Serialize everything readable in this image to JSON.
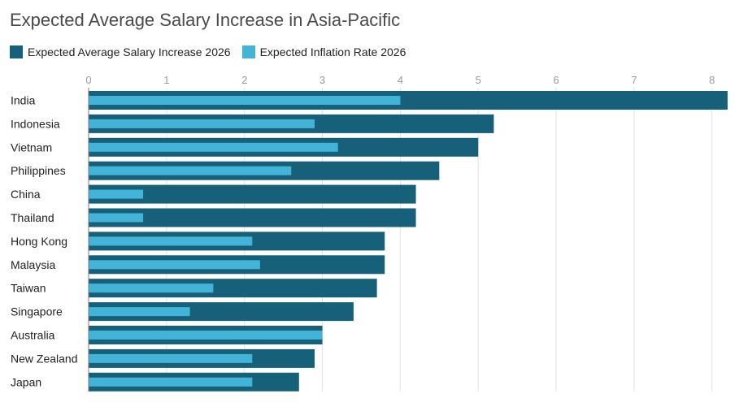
{
  "chart_data": {
    "type": "bar",
    "orientation": "horizontal",
    "title": "Expected Average Salary Increase in Asia-Pacific",
    "categories": [
      "India",
      "Indonesia",
      "Vietnam",
      "Philippines",
      "China",
      "Thailand",
      "Hong Kong",
      "Malaysia",
      "Taiwan",
      "Singapore",
      "Australia",
      "New Zealand",
      "Japan"
    ],
    "series": [
      {
        "name": "Expected Average Salary Increase 2026",
        "color": "#17607a",
        "values": [
          8.2,
          5.2,
          5.0,
          4.5,
          4.2,
          4.2,
          3.8,
          3.8,
          3.7,
          3.4,
          3.0,
          2.9,
          2.7
        ]
      },
      {
        "name": "Expected Inflation Rate 2026",
        "color": "#44b3d8",
        "values": [
          4.0,
          2.9,
          3.2,
          2.6,
          0.7,
          0.7,
          2.1,
          2.2,
          1.6,
          1.3,
          3.0,
          2.1,
          2.1
        ]
      }
    ],
    "xticks": [
      0,
      1,
      2,
      3,
      4,
      5,
      6,
      7,
      8
    ],
    "xlim": [
      0,
      8.2
    ],
    "legend": "top-left",
    "grid": true
  }
}
